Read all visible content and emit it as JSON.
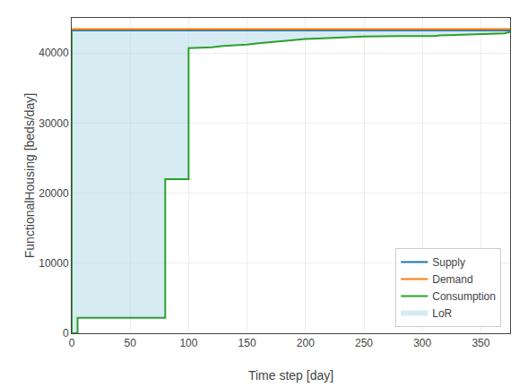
{
  "chart_data": {
    "type": "line",
    "xlabel": "Time step [day]",
    "ylabel": "FunctionalHousing [beds/day]",
    "xlim": [
      0,
      375
    ],
    "ylim": [
      0,
      45000
    ],
    "xticks": [
      0,
      50,
      100,
      150,
      200,
      250,
      300,
      350
    ],
    "yticks": [
      0,
      10000,
      20000,
      30000,
      40000
    ],
    "grid": true,
    "legend": "lower right",
    "series": [
      {
        "name": "Supply",
        "color": "#1f77b4",
        "x": [
          0,
          375
        ],
        "values": [
          43200,
          43200
        ]
      },
      {
        "name": "Demand",
        "color": "#ff7f0e",
        "x": [
          0,
          375
        ],
        "values": [
          43400,
          43400
        ]
      },
      {
        "name": "Consumption",
        "color": "#2ca02c",
        "x": [
          0,
          0,
          5,
          5,
          15,
          15,
          80,
          80,
          100,
          100,
          120,
          130,
          150,
          160,
          175,
          190,
          200,
          215,
          230,
          250,
          280,
          310,
          315,
          330,
          370,
          375
        ],
        "values": [
          43200,
          0,
          0,
          2200,
          2200,
          2200,
          2200,
          22000,
          22000,
          40700,
          40800,
          41000,
          41200,
          41400,
          41600,
          41800,
          42000,
          42100,
          42200,
          42350,
          42400,
          42400,
          42500,
          42600,
          42800,
          43000
        ]
      },
      {
        "name": "LoR",
        "type": "area",
        "color": "#add8e6",
        "x": [
          0,
          0,
          5,
          5,
          15,
          15,
          80,
          80,
          100,
          100,
          120,
          130,
          150,
          160,
          175,
          190,
          200,
          215,
          230,
          250,
          280,
          310,
          315,
          330,
          370,
          375
        ],
        "values": [
          43200,
          0,
          0,
          2200,
          2200,
          2200,
          2200,
          22000,
          22000,
          40700,
          40800,
          41000,
          41200,
          41400,
          41600,
          41800,
          42000,
          42100,
          42200,
          42350,
          42400,
          42400,
          42500,
          42600,
          42800,
          43000
        ]
      }
    ]
  }
}
